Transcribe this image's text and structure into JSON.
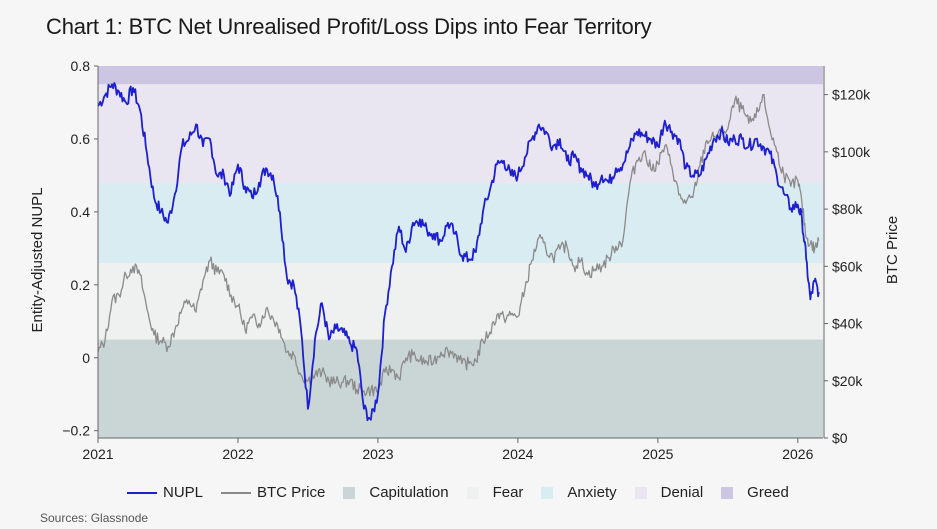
{
  "chart_data": {
    "type": "line",
    "title": "Chart 1: BTC Net Unrealised Profit/Loss Dips into Fear Territory",
    "ylabel": "Entity-Adjusted NUPL",
    "y2label": "BTC Price",
    "ylim": [
      -0.22,
      0.8
    ],
    "y2lim": [
      0,
      130000
    ],
    "xlim": [
      2021.0,
      2026.18
    ],
    "x_ticks": [
      {
        "value": 2021,
        "label": "2021"
      },
      {
        "value": 2022,
        "label": "2022"
      },
      {
        "value": 2023,
        "label": "2023"
      },
      {
        "value": 2024,
        "label": "2024"
      },
      {
        "value": 2025,
        "label": "2025"
      },
      {
        "value": 2026,
        "label": "2026"
      }
    ],
    "y_ticks": [
      {
        "value": 0.8,
        "label": "0.8"
      },
      {
        "value": 0.6,
        "label": "0.6"
      },
      {
        "value": 0.4,
        "label": "0.4"
      },
      {
        "value": 0.2,
        "label": "0.2"
      },
      {
        "value": 0,
        "label": "0"
      },
      {
        "value": -0.2,
        "label": "−0.2"
      }
    ],
    "y2_ticks": [
      {
        "value": 120000,
        "label": "$120k"
      },
      {
        "value": 100000,
        "label": "$100k"
      },
      {
        "value": 80000,
        "label": "$80k"
      },
      {
        "value": 60000,
        "label": "$60k"
      },
      {
        "value": 40000,
        "label": "$40k"
      },
      {
        "value": 20000,
        "label": "$20k"
      },
      {
        "value": 0,
        "label": "$0"
      }
    ],
    "zones": [
      {
        "name": "Capitulation",
        "from": -0.22,
        "to": 0.05,
        "color": "#c9d6d5"
      },
      {
        "name": "Fear",
        "from": 0.05,
        "to": 0.26,
        "color": "#eef1f0"
      },
      {
        "name": "Anxiety",
        "from": 0.26,
        "to": 0.48,
        "color": "#d9ecf1"
      },
      {
        "name": "Denial",
        "from": 0.48,
        "to": 0.75,
        "color": "#e9e5f1"
      },
      {
        "name": "Greed",
        "from": 0.75,
        "to": 0.8,
        "color": "#cdc6e3"
      }
    ],
    "series": [
      {
        "name": "NUPL",
        "axis": "left",
        "color": "#1d1fd0",
        "x": [
          2021.0,
          2021.05,
          2021.1,
          2021.15,
          2021.2,
          2021.25,
          2021.3,
          2021.35,
          2021.4,
          2021.45,
          2021.5,
          2021.55,
          2021.6,
          2021.65,
          2021.7,
          2021.75,
          2021.8,
          2021.85,
          2021.9,
          2021.95,
          2022.0,
          2022.05,
          2022.1,
          2022.15,
          2022.2,
          2022.25,
          2022.3,
          2022.35,
          2022.4,
          2022.45,
          2022.5,
          2022.55,
          2022.6,
          2022.65,
          2022.7,
          2022.75,
          2022.8,
          2022.85,
          2022.9,
          2022.95,
          2023.0,
          2023.05,
          2023.1,
          2023.15,
          2023.2,
          2023.25,
          2023.3,
          2023.35,
          2023.4,
          2023.45,
          2023.5,
          2023.55,
          2023.6,
          2023.65,
          2023.7,
          2023.75,
          2023.8,
          2023.85,
          2023.9,
          2023.95,
          2024.0,
          2024.05,
          2024.1,
          2024.15,
          2024.2,
          2024.25,
          2024.3,
          2024.35,
          2024.4,
          2024.45,
          2024.5,
          2024.55,
          2024.6,
          2024.65,
          2024.7,
          2024.75,
          2024.8,
          2024.85,
          2024.9,
          2024.95,
          2025.0,
          2025.05,
          2025.1,
          2025.15,
          2025.2,
          2025.25,
          2025.3,
          2025.35,
          2025.4,
          2025.45,
          2025.5,
          2025.55,
          2025.6,
          2025.65,
          2025.7,
          2025.75,
          2025.8,
          2025.85,
          2025.9,
          2025.95,
          2026.0,
          2026.03,
          2026.06,
          2026.09,
          2026.12,
          2026.15
        ],
        "values": [
          0.69,
          0.72,
          0.75,
          0.73,
          0.7,
          0.74,
          0.68,
          0.56,
          0.44,
          0.4,
          0.37,
          0.45,
          0.58,
          0.6,
          0.64,
          0.58,
          0.6,
          0.5,
          0.5,
          0.45,
          0.53,
          0.47,
          0.44,
          0.48,
          0.52,
          0.5,
          0.4,
          0.22,
          0.2,
          0.08,
          -0.14,
          0.05,
          0.15,
          0.05,
          0.08,
          0.07,
          0.04,
          0.02,
          -0.14,
          -0.17,
          -0.1,
          0.12,
          0.25,
          0.36,
          0.29,
          0.37,
          0.38,
          0.35,
          0.34,
          0.32,
          0.37,
          0.34,
          0.28,
          0.27,
          0.29,
          0.4,
          0.46,
          0.53,
          0.54,
          0.5,
          0.5,
          0.55,
          0.6,
          0.64,
          0.62,
          0.58,
          0.6,
          0.54,
          0.55,
          0.52,
          0.5,
          0.47,
          0.5,
          0.48,
          0.52,
          0.53,
          0.58,
          0.62,
          0.61,
          0.6,
          0.58,
          0.65,
          0.62,
          0.6,
          0.52,
          0.5,
          0.5,
          0.55,
          0.6,
          0.62,
          0.59,
          0.6,
          0.6,
          0.58,
          0.6,
          0.58,
          0.56,
          0.5,
          0.45,
          0.41,
          0.42,
          0.38,
          0.27,
          0.16,
          0.21,
          0.18
        ]
      },
      {
        "name": "BTC Price",
        "axis": "right",
        "color": "#8a8a8a",
        "x": [
          2021.0,
          2021.05,
          2021.1,
          2021.15,
          2021.2,
          2021.25,
          2021.3,
          2021.35,
          2021.4,
          2021.45,
          2021.5,
          2021.55,
          2021.6,
          2021.65,
          2021.7,
          2021.75,
          2021.8,
          2021.85,
          2021.9,
          2021.95,
          2022.0,
          2022.05,
          2022.1,
          2022.15,
          2022.2,
          2022.25,
          2022.3,
          2022.35,
          2022.4,
          2022.45,
          2022.5,
          2022.55,
          2022.6,
          2022.65,
          2022.7,
          2022.75,
          2022.8,
          2022.85,
          2022.9,
          2022.95,
          2023.0,
          2023.05,
          2023.1,
          2023.15,
          2023.2,
          2023.25,
          2023.3,
          2023.35,
          2023.4,
          2023.45,
          2023.5,
          2023.55,
          2023.6,
          2023.65,
          2023.7,
          2023.75,
          2023.8,
          2023.85,
          2023.9,
          2023.95,
          2024.0,
          2024.05,
          2024.1,
          2024.15,
          2024.2,
          2024.25,
          2024.3,
          2024.35,
          2024.4,
          2024.45,
          2024.5,
          2024.55,
          2024.6,
          2024.65,
          2024.7,
          2024.75,
          2024.8,
          2024.85,
          2024.9,
          2024.95,
          2025.0,
          2025.05,
          2025.1,
          2025.15,
          2025.2,
          2025.25,
          2025.3,
          2025.35,
          2025.4,
          2025.45,
          2025.5,
          2025.55,
          2025.6,
          2025.65,
          2025.7,
          2025.75,
          2025.8,
          2025.85,
          2025.9,
          2025.95,
          2026.0,
          2026.03,
          2026.06,
          2026.09,
          2026.12,
          2026.15
        ],
        "values": [
          30000,
          34000,
          48000,
          50000,
          57000,
          60000,
          57000,
          45000,
          36000,
          34000,
          32000,
          38000,
          45000,
          48000,
          44000,
          55000,
          62000,
          58000,
          57000,
          50000,
          46000,
          38000,
          42000,
          40000,
          45000,
          42000,
          38000,
          30000,
          29000,
          22000,
          20000,
          22000,
          23000,
          20000,
          19500,
          19500,
          20000,
          17000,
          16500,
          16800,
          16600,
          23000,
          24000,
          21000,
          28000,
          29000,
          27000,
          26500,
          27000,
          30000,
          30500,
          29500,
          26000,
          26000,
          27000,
          34000,
          37000,
          43000,
          42000,
          43000,
          42500,
          52000,
          62000,
          70000,
          66000,
          63000,
          66000,
          67000,
          60000,
          62000,
          57000,
          59000,
          60000,
          63000,
          67000,
          69000,
          89000,
          97000,
          100000,
          94000,
          96000,
          102000,
          95000,
          85000,
          82000,
          84000,
          95000,
          104000,
          105000,
          107000,
          108000,
          118000,
          115000,
          110000,
          112000,
          120000,
          108000,
          100000,
          92000,
          88000,
          90000,
          82000,
          70000,
          68000,
          66000,
          69000
        ]
      }
    ]
  },
  "legend": {
    "nupl_label": "NUPL",
    "btc_label": "BTC Price",
    "capitulation_label": "Capitulation",
    "fear_label": "Fear",
    "anxiety_label": "Anxiety",
    "denial_label": "Denial",
    "greed_label": "Greed",
    "nupl_color": "#1d1fd0",
    "btc_color": "#8a8a8a",
    "capitulation_color": "#c9d6d5",
    "fear_color": "#eef1f0",
    "anxiety_color": "#d9ecf1",
    "denial_color": "#e9e5f1",
    "greed_color": "#cdc6e3"
  },
  "source": "Sources: Glassnode"
}
